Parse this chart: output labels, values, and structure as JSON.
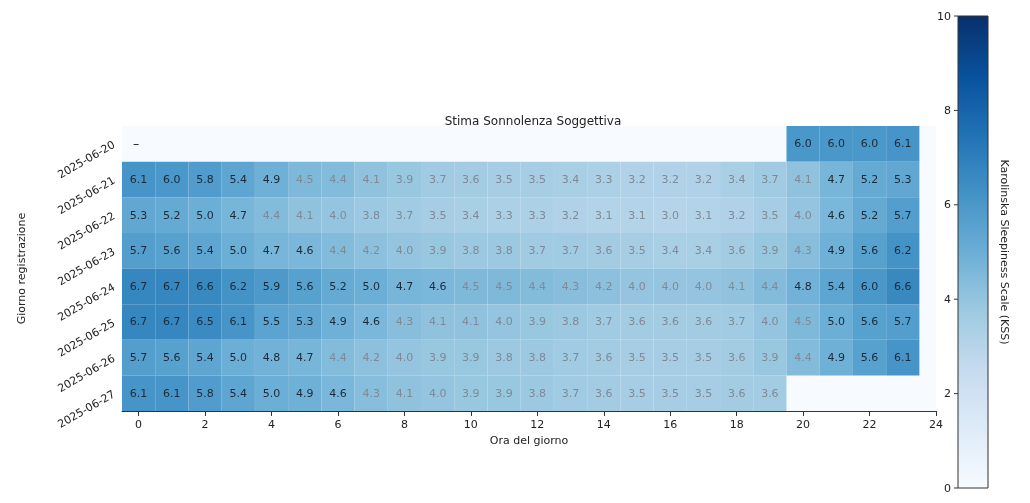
{
  "chart_data": {
    "type": "heatmap",
    "title": "Stima Sonnolenza Soggettiva",
    "xlabel": "Ora del giorno",
    "ylabel": "Giorno registrazione",
    "clabel": "Karolinska Sleepiness Scale (KSS)",
    "x": [
      0,
      1,
      2,
      3,
      4,
      5,
      6,
      7,
      8,
      9,
      10,
      11,
      12,
      13,
      14,
      15,
      16,
      17,
      18,
      19,
      20,
      21,
      22,
      23
    ],
    "xlim": [
      -0.5,
      24
    ],
    "xticks": [
      0,
      2,
      4,
      6,
      8,
      10,
      12,
      14,
      16,
      18,
      20,
      22,
      24
    ],
    "y_categories": [
      "2025-06-20",
      "2025-06-21",
      "2025-06-22",
      "2025-06-23",
      "2025-06-24",
      "2025-06-25",
      "2025-06-26",
      "2025-06-27"
    ],
    "cells": [
      [
        null,
        null,
        null,
        null,
        null,
        null,
        null,
        null,
        null,
        null,
        null,
        null,
        null,
        null,
        null,
        null,
        null,
        null,
        null,
        null,
        6.0,
        6.0,
        6.0,
        6.1
      ],
      [
        6.1,
        6.0,
        5.8,
        5.4,
        4.9,
        4.5,
        4.4,
        4.1,
        3.9,
        3.7,
        3.6,
        3.5,
        3.5,
        3.4,
        3.3,
        3.2,
        3.2,
        3.2,
        3.4,
        3.7,
        4.1,
        4.7,
        5.2,
        5.3
      ],
      [
        5.3,
        5.2,
        5.0,
        4.7,
        4.4,
        4.1,
        4.0,
        3.8,
        3.7,
        3.5,
        3.4,
        3.3,
        3.3,
        3.2,
        3.1,
        3.1,
        3.0,
        3.1,
        3.2,
        3.5,
        4.0,
        4.6,
        5.2,
        5.7
      ],
      [
        5.7,
        5.6,
        5.4,
        5.0,
        4.7,
        4.6,
        4.4,
        4.2,
        4.0,
        3.9,
        3.8,
        3.8,
        3.7,
        3.7,
        3.6,
        3.5,
        3.4,
        3.4,
        3.6,
        3.9,
        4.3,
        4.9,
        5.6,
        6.2
      ],
      [
        6.7,
        6.7,
        6.6,
        6.2,
        5.9,
        5.6,
        5.2,
        5.0,
        4.7,
        4.6,
        4.5,
        4.5,
        4.4,
        4.3,
        4.2,
        4.0,
        4.0,
        4.0,
        4.1,
        4.4,
        4.8,
        5.4,
        6.0,
        6.6
      ],
      [
        6.7,
        6.7,
        6.5,
        6.1,
        5.5,
        5.3,
        4.9,
        4.6,
        4.3,
        4.1,
        4.1,
        4.0,
        3.9,
        3.8,
        3.7,
        3.6,
        3.6,
        3.6,
        3.7,
        4.0,
        4.5,
        5.0,
        5.6,
        5.7
      ],
      [
        5.7,
        5.6,
        5.4,
        5.0,
        4.8,
        4.7,
        4.4,
        4.2,
        4.0,
        3.9,
        3.9,
        3.8,
        3.8,
        3.7,
        3.6,
        3.5,
        3.5,
        3.5,
        3.6,
        3.9,
        4.4,
        4.9,
        5.6,
        6.1
      ],
      [
        6.1,
        6.1,
        5.8,
        5.4,
        5.0,
        4.9,
        4.6,
        4.3,
        4.1,
        4.0,
        3.9,
        3.9,
        3.8,
        3.7,
        3.6,
        3.5,
        3.5,
        3.5,
        3.6,
        3.6,
        null,
        null,
        null,
        null
      ]
    ],
    "cell_labels": [
      [
        null,
        null,
        null,
        null,
        null,
        null,
        null,
        null,
        null,
        null,
        null,
        null,
        null,
        null,
        null,
        null,
        null,
        null,
        null,
        null,
        "6.0",
        "6.0",
        "6.0",
        "6.1"
      ],
      [
        "6.1",
        "6.0",
        "5.8",
        "5.4",
        "4.9",
        "4.5",
        "4.4",
        "4.1",
        "3.9",
        "3.7",
        "3.6",
        "3.5",
        "3.5",
        "3.4",
        "3.3",
        "3.2",
        "3.2",
        "3.2",
        "3.4",
        "3.7",
        "4.1",
        "4.7",
        "5.2",
        "5.3"
      ],
      [
        "5.3",
        "5.2",
        "5.0",
        "4.7",
        "4.4",
        "4.1",
        "4.0",
        "3.8",
        "3.7",
        "3.5",
        "3.4",
        "3.3",
        "3.3",
        "3.2",
        "3.1",
        "3.1",
        "3.0",
        "3.1",
        "3.2",
        "3.5",
        "4.0",
        "4.6",
        "5.2",
        "5.7"
      ],
      [
        "5.7",
        "5.6",
        "5.4",
        "5.0",
        "4.7",
        "4.6",
        "4.4",
        "4.2",
        "4.0",
        "3.9",
        "3.8",
        "3.8",
        "3.7",
        "3.7",
        "3.6",
        "3.5",
        "3.4",
        "3.4",
        "3.6",
        "3.9",
        "4.3",
        "4.9",
        "5.6",
        "6.2"
      ],
      [
        "6.7",
        "6.7",
        "6.6",
        "6.2",
        "5.9",
        "5.6",
        "5.2",
        "5.0",
        "4.7",
        "4.6",
        "4.5",
        "4.5",
        "4.4",
        "4.3",
        "4.2",
        "4.0",
        "4.0",
        "4.0",
        "4.1",
        "4.4",
        "4.8",
        "5.4",
        "6.0",
        "6.6"
      ],
      [
        "6.7",
        "6.7",
        "6.5",
        "6.1",
        "5.5",
        "5.3",
        "4.9",
        "4.6",
        "4.3",
        "4.1",
        "4.1",
        "4.0",
        "3.9",
        "3.8",
        "3.7",
        "3.6",
        "3.6",
        "3.6",
        "3.7",
        "4.0",
        "4.5",
        "5.0",
        "5.6",
        "5.7"
      ],
      [
        "5.7",
        "5.6",
        "5.4",
        "5.0",
        "4.8",
        "4.7",
        "4.4",
        "4.2",
        "4.0",
        "3.9",
        "3.9",
        "3.8",
        "3.8",
        "3.7",
        "3.6",
        "3.5",
        "3.5",
        "3.5",
        "3.6",
        "3.9",
        "4.4",
        "4.9",
        "5.6",
        "6.1"
      ],
      [
        "6.1",
        "6.1",
        "5.8",
        "5.4",
        "5.0",
        "4.9",
        "4.6",
        "4.3",
        "4.1",
        "4.0",
        "3.9",
        "3.9",
        "3.8",
        "3.7",
        "3.6",
        "3.5",
        "3.5",
        "3.5",
        "3.6",
        "3.6",
        null,
        null,
        null,
        null
      ]
    ],
    "clim": [
      0,
      10
    ],
    "cticks": [
      0,
      2,
      4,
      6,
      8,
      10
    ]
  }
}
